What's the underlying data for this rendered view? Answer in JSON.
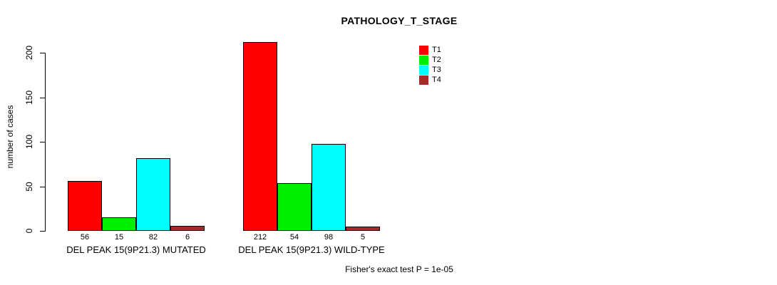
{
  "chart_data": {
    "type": "bar",
    "title": "PATHOLOGY_T_STAGE",
    "ylabel": "number of cases",
    "xlabel": "",
    "ylim": [
      0,
      200
    ],
    "yticks": [
      0,
      50,
      100,
      150,
      200
    ],
    "grid": false,
    "legend_position": "top-right",
    "series": [
      {
        "name": "T1",
        "color": "#ff0000"
      },
      {
        "name": "T2",
        "color": "#00ee00"
      },
      {
        "name": "T3",
        "color": "#00ffff"
      },
      {
        "name": "T4",
        "color": "#a52a2a"
      }
    ],
    "groups": [
      {
        "label": "DEL PEAK 15(9P21.3) MUTATED",
        "values": [
          56,
          15,
          82,
          6
        ]
      },
      {
        "label": "DEL PEAK 15(9P21.3) WILD-TYPE",
        "values": [
          212,
          54,
          98,
          5
        ]
      }
    ],
    "footer": "Fisher's exact test P = 1e-05"
  }
}
